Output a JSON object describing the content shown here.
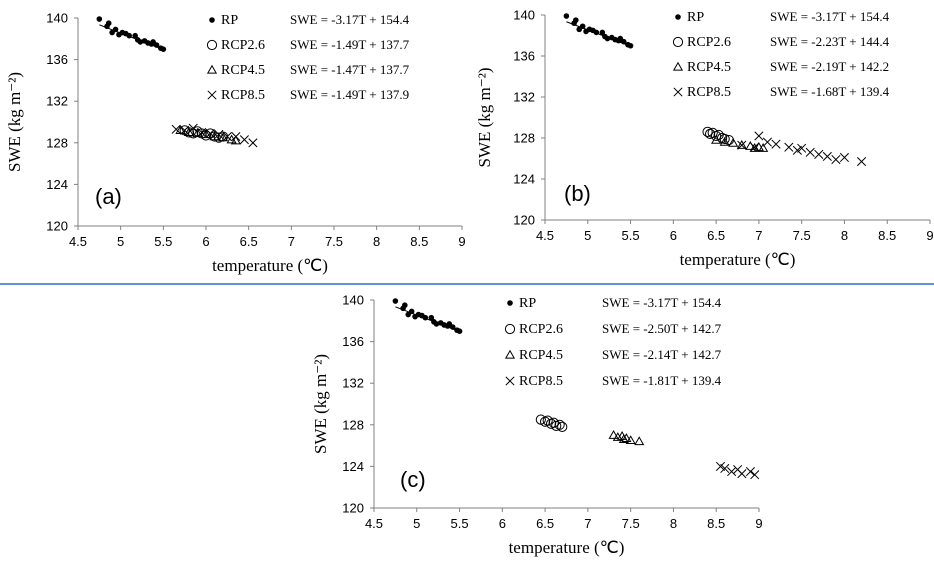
{
  "chart_data": [
    {
      "type": "scatter",
      "panel_label": "(a)",
      "xlabel": "temperature (℃)",
      "ylabel": "SWE (kg m⁻²)",
      "xlim": [
        4.5,
        9
      ],
      "ylim": [
        120,
        140
      ],
      "xticks": [
        "4.5",
        "5",
        "5.5",
        "6",
        "6.5",
        "7",
        "7.5",
        "8",
        "8.5",
        "9"
      ],
      "yticks": [
        "120",
        "124",
        "128",
        "132",
        "136",
        "140"
      ],
      "grid": false,
      "legend_position": "top-right",
      "series": [
        {
          "name": "RP",
          "marker": "filled-circle",
          "equation": "SWE = -3.17T + 154.4",
          "x": [
            4.75,
            4.84,
            4.86,
            4.9,
            4.94,
            4.98,
            5.02,
            5.06,
            5.1,
            5.17,
            5.2,
            5.23,
            5.28,
            5.32,
            5.36,
            5.38,
            5.42,
            5.47,
            5.5
          ],
          "y": [
            139.9,
            139.2,
            139.5,
            138.6,
            138.9,
            138.4,
            138.6,
            138.5,
            138.3,
            138.3,
            137.9,
            137.7,
            137.8,
            137.6,
            137.5,
            137.7,
            137.4,
            137.1,
            137.0
          ]
        },
        {
          "name": "RCP2.6",
          "marker": "open-circle",
          "equation": "SWE = -1.49T + 137.7",
          "x": [
            5.75,
            5.8,
            5.85,
            5.9,
            5.95,
            6.0,
            6.05,
            6.1,
            6.15,
            6.2
          ],
          "y": [
            129.2,
            129.0,
            128.9,
            129.1,
            128.9,
            128.7,
            128.9,
            128.6,
            128.5,
            128.6
          ]
        },
        {
          "name": "RCP4.5",
          "marker": "open-triangle",
          "equation": "SWE = -1.47T + 137.7",
          "x": [
            5.7,
            5.8,
            5.9,
            6.0,
            6.1,
            6.2,
            6.3,
            6.35
          ],
          "y": [
            129.2,
            129.0,
            128.9,
            128.8,
            128.6,
            128.5,
            128.3,
            128.2
          ]
        },
        {
          "name": "RCP8.5",
          "marker": "cross",
          "equation": "SWE = -1.49T + 137.9",
          "x": [
            5.65,
            5.75,
            5.85,
            5.95,
            6.05,
            6.15,
            6.25,
            6.35,
            6.45,
            6.55
          ],
          "y": [
            129.3,
            129.2,
            129.4,
            129.0,
            128.9,
            128.8,
            128.6,
            128.6,
            128.3,
            128.0
          ]
        }
      ]
    },
    {
      "type": "scatter",
      "panel_label": "(b)",
      "xlabel": "temperature (℃)",
      "ylabel": "SWE (kg m⁻²)",
      "xlim": [
        4.5,
        9
      ],
      "ylim": [
        120,
        140
      ],
      "xticks": [
        "4.5",
        "5",
        "5.5",
        "6",
        "6.5",
        "7",
        "7.5",
        "8",
        "8.5",
        "9"
      ],
      "yticks": [
        "120",
        "124",
        "128",
        "132",
        "136",
        "140"
      ],
      "grid": false,
      "legend_position": "top-right",
      "series": [
        {
          "name": "RP",
          "marker": "filled-circle",
          "equation": "SWE = -3.17T + 154.4",
          "x": [
            4.75,
            4.84,
            4.86,
            4.9,
            4.94,
            4.98,
            5.02,
            5.06,
            5.1,
            5.17,
            5.2,
            5.23,
            5.28,
            5.32,
            5.36,
            5.38,
            5.42,
            5.47,
            5.5
          ],
          "y": [
            139.9,
            139.2,
            139.5,
            138.6,
            138.9,
            138.4,
            138.6,
            138.5,
            138.3,
            138.3,
            137.9,
            137.7,
            137.8,
            137.6,
            137.5,
            137.7,
            137.4,
            137.1,
            137.0
          ]
        },
        {
          "name": "RCP2.6",
          "marker": "open-circle",
          "equation": "SWE = -2.23T + 144.4",
          "x": [
            6.4,
            6.43,
            6.46,
            6.5,
            6.53,
            6.57,
            6.6,
            6.65
          ],
          "y": [
            128.6,
            128.4,
            128.5,
            128.2,
            128.3,
            128.0,
            127.9,
            127.8
          ]
        },
        {
          "name": "RCP4.5",
          "marker": "open-triangle",
          "equation": "SWE = -2.19T + 142.2",
          "x": [
            6.5,
            6.6,
            6.7,
            6.8,
            6.9,
            6.95,
            7.0,
            7.05
          ],
          "y": [
            127.8,
            127.6,
            127.5,
            127.3,
            127.2,
            127.0,
            127.1,
            127.0
          ]
        },
        {
          "name": "RCP8.5",
          "marker": "cross",
          "equation": "SWE = -1.68T + 139.4",
          "x": [
            6.8,
            6.95,
            7.0,
            7.1,
            7.2,
            7.35,
            7.45,
            7.5,
            7.6,
            7.7,
            7.8,
            7.9,
            8.0,
            8.2
          ],
          "y": [
            127.3,
            127.1,
            128.2,
            127.6,
            127.4,
            127.1,
            126.8,
            127.0,
            126.6,
            126.4,
            126.2,
            125.9,
            126.1,
            125.7
          ]
        }
      ]
    },
    {
      "type": "scatter",
      "panel_label": "(c)",
      "xlabel": "temperature (℃)",
      "ylabel": "SWE (kg m⁻²)",
      "xlim": [
        4.5,
        9
      ],
      "ylim": [
        120,
        140
      ],
      "xticks": [
        "4.5",
        "5",
        "5.5",
        "6",
        "6.5",
        "7",
        "7.5",
        "8",
        "8.5",
        "9"
      ],
      "yticks": [
        "120",
        "124",
        "128",
        "132",
        "136",
        "140"
      ],
      "grid": false,
      "legend_position": "top-right",
      "series": [
        {
          "name": "RP",
          "marker": "filled-circle",
          "equation": "SWE = -3.17T + 154.4",
          "x": [
            4.75,
            4.84,
            4.86,
            4.9,
            4.94,
            4.98,
            5.02,
            5.06,
            5.1,
            5.17,
            5.2,
            5.23,
            5.28,
            5.32,
            5.36,
            5.38,
            5.42,
            5.47,
            5.5
          ],
          "y": [
            139.9,
            139.2,
            139.5,
            138.6,
            138.9,
            138.4,
            138.6,
            138.5,
            138.3,
            138.3,
            137.9,
            137.7,
            137.8,
            137.6,
            137.5,
            137.7,
            137.4,
            137.1,
            137.0
          ]
        },
        {
          "name": "RCP2.6",
          "marker": "open-circle",
          "equation": "SWE = -2.50T + 142.7",
          "x": [
            6.45,
            6.5,
            6.53,
            6.57,
            6.6,
            6.63,
            6.67,
            6.7
          ],
          "y": [
            128.5,
            128.3,
            128.4,
            128.1,
            128.2,
            127.9,
            128.0,
            127.8
          ]
        },
        {
          "name": "RCP4.5",
          "marker": "open-triangle",
          "equation": "SWE = -2.14T + 142.7",
          "x": [
            7.3,
            7.35,
            7.4,
            7.42,
            7.45,
            7.5,
            7.6
          ],
          "y": [
            127.0,
            126.8,
            126.9,
            126.6,
            126.7,
            126.5,
            126.4
          ]
        },
        {
          "name": "RCP8.5",
          "marker": "cross",
          "equation": "SWE = -1.81T + 139.4",
          "x": [
            8.55,
            8.6,
            8.68,
            8.75,
            8.8,
            8.9,
            8.95
          ],
          "y": [
            124.0,
            123.8,
            123.5,
            123.7,
            123.3,
            123.5,
            123.2
          ]
        }
      ]
    }
  ],
  "colors": {
    "ink": "#000000",
    "divider": "#2e6fc9",
    "background": "#ffffff"
  }
}
